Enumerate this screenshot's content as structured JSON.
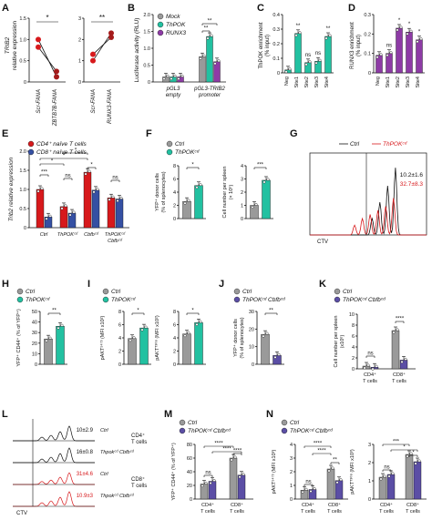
{
  "colors": {
    "red": "#d7191c",
    "darkred": "#a51b1b",
    "teal": "#22c1a1",
    "purple": "#8e3ba6",
    "blue": "#3550a3",
    "gray": "#9a9a9a",
    "violet": "#5b4ea5",
    "lightred": "#ee7066",
    "lightpurple": "#b9a8d8",
    "black": "#111111"
  },
  "panels": {
    "A": {
      "letter": "A",
      "ylabel": "TRIB2 relative expression",
      "ylabel_split": [
        "TRIB2",
        "relative expression"
      ],
      "left": {
        "cats": [
          "Scr-FANA",
          "ZBTB7B-FANA"
        ],
        "ticks": [
          "0",
          "0.5",
          "1.0",
          "1.5"
        ],
        "star": "*"
      },
      "right": {
        "cats": [
          "Scr-FANA",
          "RUNX3-FANA"
        ],
        "ticks": [
          "0",
          "1",
          "2",
          "3"
        ],
        "star": "**"
      }
    },
    "B": {
      "letter": "B",
      "ylabel": "Luciferase activity (RLU)",
      "legend": [
        "Mock",
        "ThPOK",
        "RUNX3"
      ],
      "ticks": [
        "0",
        "0.5",
        "1.0",
        "1.5",
        "2.0"
      ],
      "groups": [
        "pGL3 empty",
        "pGL3-TRIB2 promoter"
      ],
      "group_lines": [
        [
          "pGL3",
          "empty"
        ],
        [
          "pGL3-TRIB2",
          "promoter"
        ]
      ],
      "stars": [
        "**",
        "**"
      ]
    },
    "C": {
      "letter": "C",
      "ylabel": "ThPOK enrichment (% input)",
      "ylabel_split": [
        "ThPOK enrichment",
        "(% input)"
      ],
      "ticks": [
        "0",
        "0.1",
        "0.2",
        "0.3",
        "0.4"
      ],
      "cats": [
        "Neg",
        "Site1",
        "Site2",
        "Site3",
        "Site4"
      ],
      "labels": [
        "**",
        "ns",
        "ns",
        "**"
      ]
    },
    "D": {
      "letter": "D",
      "ylabel": "RUNX3 enrichment (% input)",
      "ylabel_split": [
        "RUNX3 enrichment",
        "(% input)"
      ],
      "ticks": [
        "0",
        "0.1",
        "0.2",
        "0.3"
      ],
      "cats": [
        "Neg",
        "Site1",
        "Site2",
        "Site3",
        "Site4"
      ],
      "labels": [
        "ns",
        "*",
        "*",
        "*"
      ]
    },
    "E": {
      "letter": "E",
      "ylabel": "Trib2 relative expression",
      "legend": [
        "CD4⁺ naïve T cells",
        "CD8⁺ naïve T cells"
      ],
      "ticks": [
        "0",
        "0.5",
        "1.0",
        "1.5",
        "2.0"
      ],
      "groups": [
        "Ctrl",
        "ThPOK",
        "Cbfb",
        "ThPOK Cbfb"
      ],
      "group_lines": [
        [
          "Ctrl"
        ],
        [
          "ThPOKᶜᵈ"
        ],
        [
          "Cbfbᶜᵈ"
        ],
        [
          "ThPOKᶜᵈ",
          "Cbfbᶜᵈ"
        ]
      ],
      "brackets": [
        "*",
        "*",
        "*",
        "***",
        "ns",
        "*",
        "ns"
      ]
    },
    "F": {
      "letter": "F",
      "legend": [
        "Ctrl",
        "ThPOKᶜᵈ"
      ],
      "left_ylabel": [
        "YFP⁺ donor cells",
        "(% of splenocytes)"
      ],
      "left_ticks": [
        "0",
        "2",
        "4",
        "6",
        "8"
      ],
      "left_star": "*",
      "right_ylabel": [
        "Cell number per spleen",
        "(× 10⁶)"
      ],
      "right_ticks": [
        "0",
        "1",
        "2",
        "3",
        "4"
      ],
      "right_star": "***"
    },
    "G": {
      "letter": "G",
      "legend": [
        "Ctrl",
        "ThPOKᶜᵈ"
      ],
      "xlabel": "CTV",
      "val_black": "10.2±1.6",
      "val_red": "32.7±8.3"
    },
    "H": {
      "letter": "H",
      "legend": [
        "Ctrl",
        "ThPOKᶜᵈ"
      ],
      "ylabel": [
        "YFP⁺ CD44⁺ (% of YFP⁺)"
      ],
      "ticks": [
        "0",
        "10",
        "20",
        "30",
        "40",
        "50"
      ],
      "star": "**"
    },
    "I": {
      "letter": "I",
      "legend": [
        "Ctrl",
        "ThPOKᶜᵈ"
      ],
      "left_ylabel": [
        "pAKTˢ⁴⁷³ (MFI x10²)"
      ],
      "left_ticks": [
        "0",
        "2",
        "4",
        "6",
        "8"
      ],
      "left_star": "*",
      "right_ylabel": [
        "pAKTᵀ³⁰⁸ (MFI x10²)"
      ],
      "right_ticks": [
        "0",
        "2",
        "4",
        "6",
        "8"
      ],
      "right_star": "*"
    },
    "J": {
      "letter": "J",
      "legend": [
        "Ctrl",
        "ThPOKᶜᵈ Cbfbᶜᵈ"
      ],
      "ylabel": [
        "YFP⁺ donor cells",
        "(% of splenocytes)"
      ],
      "ticks": [
        "0",
        "10",
        "20",
        "30"
      ],
      "star": "**"
    },
    "K": {
      "letter": "K",
      "legend": [
        "Ctrl",
        "ThPOKᶜᵈ Cbfbᶜᵈ"
      ],
      "ylabel": [
        "Cell number per spleen",
        "(x10⁶)"
      ],
      "ticks": [
        "0",
        "2",
        "4",
        "6",
        "8",
        "10"
      ],
      "cats": [
        [
          "CD4⁺",
          "T cells"
        ],
        [
          "CD8⁺",
          "T cells"
        ]
      ],
      "labels": [
        "ns",
        "****"
      ]
    },
    "L": {
      "letter": "L",
      "xlabel": "CTV",
      "rows": [
        {
          "value": "10±2.9",
          "label": "Ctrl"
        },
        {
          "value": "16±0.8",
          "label": "Thpokᶜᵈ Cbfbᶜᵈ"
        },
        {
          "value": "31±4.6",
          "label": "Ctrl"
        },
        {
          "value": "10.9±3",
          "label": "Thpokᶜᵈ Cbfbᶜᵈ"
        }
      ],
      "groups": [
        [
          "CD4⁺",
          "T cells"
        ],
        [
          "CD8⁺",
          "T cells"
        ]
      ]
    },
    "M": {
      "letter": "M",
      "legend": [
        "Ctrl",
        "ThPOKᶜᵈ Cbfbᶜᵈ"
      ],
      "ylabel": [
        "YFP⁺ CD44⁺ (% of YFP⁺)"
      ],
      "ticks": [
        "0",
        "20",
        "40",
        "60",
        "80"
      ],
      "cats": [
        [
          "CD4⁺",
          "T cells"
        ],
        [
          "CD8⁺",
          "T cells"
        ]
      ],
      "labels": [
        "****",
        "****",
        "ns",
        "****"
      ]
    },
    "N": {
      "letter": "N",
      "legend": [
        "Ctrl",
        "ThPOKᶜᵈ Cbfbᶜᵈ"
      ],
      "left_ylabel": [
        "pAKTˢ⁴⁷³ (MFI x10³)"
      ],
      "left_ticks": [
        "0",
        "1",
        "2",
        "3",
        "4"
      ],
      "left_labels": [
        "****",
        "****",
        "ns",
        "**"
      ],
      "right_ylabel": [
        "pAKTᵀ³⁰⁸ (MFI x10³)"
      ],
      "right_ticks": [
        "0",
        "1",
        "2",
        "3"
      ],
      "right_labels": [
        "***",
        "*",
        "ns",
        "*"
      ],
      "cats": [
        [
          "CD4⁺",
          "T cells"
        ],
        [
          "CD8⁺",
          "T cells"
        ]
      ]
    }
  },
  "chart_data": [
    {
      "type": "line",
      "panel": "A-left",
      "categories": [
        "Scr-FANA",
        "ZBTB7B-FANA"
      ],
      "series": [
        {
          "values": [
            1.0,
            0.12
          ]
        },
        {
          "values": [
            0.82,
            0.25
          ]
        }
      ],
      "ylim": [
        0,
        1.5
      ],
      "ylabel": "TRIB2 relative expression"
    },
    {
      "type": "line",
      "panel": "A-right",
      "categories": [
        "Scr-FANA",
        "RUNX3-FANA"
      ],
      "series": [
        {
          "values": [
            1.0,
            2.3
          ]
        },
        {
          "values": [
            1.3,
            2.1
          ]
        }
      ],
      "ylim": [
        0,
        3
      ],
      "ylabel": "TRIB2 relative expression"
    },
    {
      "type": "bar",
      "panel": "B",
      "categories": [
        "pGL3 empty",
        "pGL3-TRIB2 promoter"
      ],
      "series": [
        {
          "name": "Mock",
          "values": [
            0.15,
            0.75
          ]
        },
        {
          "name": "ThPOK",
          "values": [
            0.15,
            1.35
          ]
        },
        {
          "name": "RUNX3",
          "values": [
            0.15,
            0.6
          ]
        }
      ],
      "ylim": [
        0,
        2.0
      ],
      "ylabel": "Luciferase activity (RLU)"
    },
    {
      "type": "bar",
      "panel": "C",
      "categories": [
        "Neg",
        "Site1",
        "Site2",
        "Site3",
        "Site4"
      ],
      "values": [
        0.02,
        0.27,
        0.07,
        0.08,
        0.25
      ],
      "ylim": [
        0,
        0.4
      ],
      "ylabel": "ThPOK enrichment (% input)"
    },
    {
      "type": "bar",
      "panel": "D",
      "categories": [
        "Neg",
        "Site1",
        "Site2",
        "Site3",
        "Site4"
      ],
      "values": [
        0.09,
        0.1,
        0.23,
        0.21,
        0.17
      ],
      "ylim": [
        0,
        0.3
      ],
      "ylabel": "RUNX3 enrichment (% input)"
    },
    {
      "type": "bar",
      "panel": "E",
      "categories": [
        "Ctrl",
        "ThPOK",
        "Cbfb",
        "ThPOK Cbfb"
      ],
      "series": [
        {
          "name": "CD4⁺ naïve T cells",
          "values": [
            1.0,
            0.55,
            1.45,
            0.78
          ]
        },
        {
          "name": "CD8⁺ naïve T cells",
          "values": [
            0.28,
            0.38,
            0.98,
            0.75
          ]
        }
      ],
      "ylim": [
        0,
        2.0
      ],
      "ylabel": "Trib2 relative expression"
    },
    {
      "type": "bar",
      "panel": "F-left",
      "categories": [
        "Ctrl",
        "ThPOKᶜᵈ"
      ],
      "values": [
        2.6,
        5.0
      ],
      "ylim": [
        0,
        8
      ],
      "ylabel": "YFP⁺ donor cells (% of splenocytes)"
    },
    {
      "type": "bar",
      "panel": "F-right",
      "categories": [
        "Ctrl",
        "ThPOKᶜᵈ"
      ],
      "values": [
        1.0,
        2.9
      ],
      "ylim": [
        0,
        4
      ],
      "ylabel": "Cell number per spleen (× 10⁶)"
    },
    {
      "type": "bar",
      "panel": "H",
      "categories": [
        "Ctrl",
        "ThPOKᶜᵈ"
      ],
      "values": [
        24,
        36
      ],
      "ylim": [
        0,
        50
      ],
      "ylabel": "YFP⁺ CD44⁺ (% of YFP⁺)"
    },
    {
      "type": "bar",
      "panel": "I-left",
      "categories": [
        "Ctrl",
        "ThPOKᶜᵈ"
      ],
      "values": [
        3.9,
        5.5
      ],
      "ylim": [
        0,
        8
      ]
    },
    {
      "type": "bar",
      "panel": "I-right",
      "categories": [
        "Ctrl",
        "ThPOKᶜᵈ"
      ],
      "values": [
        4.6,
        6.3
      ],
      "ylim": [
        0,
        8
      ]
    },
    {
      "type": "bar",
      "panel": "J",
      "categories": [
        "Ctrl",
        "ThPOKᶜᵈ Cbfbᶜᵈ"
      ],
      "values": [
        17,
        5
      ],
      "ylim": [
        0,
        30
      ],
      "ylabel": "YFP⁺ donor cells (% of splenocytes)"
    },
    {
      "type": "bar",
      "panel": "K",
      "categories": [
        "CD4⁺ T cells",
        "CD8⁺ T cells"
      ],
      "series": [
        {
          "name": "Ctrl",
          "values": [
            0.5,
            7.0
          ]
        },
        {
          "name": "ThPOKᶜᵈ Cbfbᶜᵈ",
          "values": [
            0.3,
            1.6
          ]
        }
      ],
      "ylim": [
        0,
        10
      ],
      "ylabel": "Cell number per spleen (x10⁶)"
    },
    {
      "type": "bar",
      "panel": "M",
      "categories": [
        "CD4⁺ T cells",
        "CD8⁺ T cells"
      ],
      "series": [
        {
          "name": "Ctrl",
          "values": [
            22,
            60
          ]
        },
        {
          "name": "ThPOKᶜᵈ Cbfbᶜᵈ",
          "values": [
            26,
            35
          ]
        }
      ],
      "ylim": [
        0,
        80
      ]
    },
    {
      "type": "bar",
      "panel": "N-left",
      "categories": [
        "CD4⁺ T cells",
        "CD8⁺ T cells"
      ],
      "series": [
        {
          "name": "Ctrl",
          "values": [
            0.65,
            2.2
          ]
        },
        {
          "name": "ThPOKᶜᵈ Cbfbᶜᵈ",
          "values": [
            0.7,
            1.35
          ]
        }
      ],
      "ylim": [
        0,
        4
      ]
    },
    {
      "type": "bar",
      "panel": "N-right",
      "categories": [
        "CD4⁺ T cells",
        "CD8⁺ T cells"
      ],
      "series": [
        {
          "name": "Ctrl",
          "values": [
            1.2,
            2.45
          ]
        },
        {
          "name": "ThPOKᶜᵈ Cbfbᶜᵈ",
          "values": [
            1.35,
            2.05
          ]
        }
      ],
      "ylim": [
        0,
        3
      ]
    }
  ]
}
